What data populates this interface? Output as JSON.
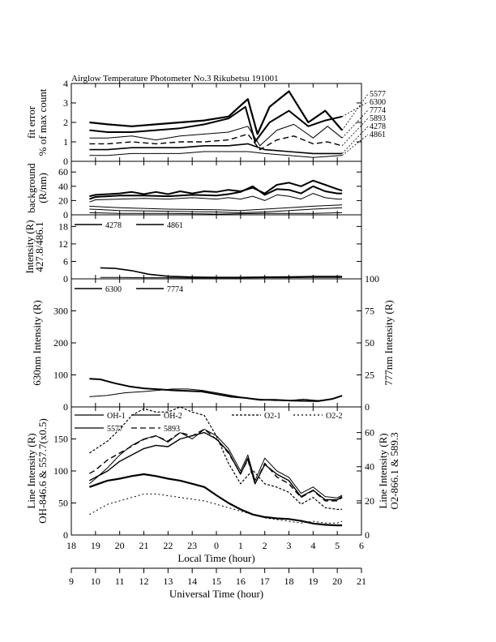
{
  "chart_data": [
    {
      "type": "line",
      "title": "Airglow Temperature Photometer No.3   Rikubetsu    191001",
      "ylabel": "fit error\n% of max count",
      "x_unit": "local hour",
      "xlim": [
        18,
        30
      ],
      "ylim": [
        0,
        4
      ],
      "yticks": [
        "0",
        "1",
        "2",
        "3",
        "4"
      ],
      "grid": false,
      "right_labels": [
        "5577",
        "6300",
        "7774",
        "5893",
        "4278",
        "4861"
      ],
      "series": [
        {
          "name": "5577",
          "x": [
            18.75,
            19.5,
            20.5,
            21.5,
            22.5,
            23.5,
            24.5,
            25.3,
            25.7,
            26.2,
            27,
            27.8,
            28.5,
            29.2
          ],
          "values": [
            2.0,
            1.9,
            1.8,
            1.9,
            2.0,
            2.1,
            2.3,
            3.2,
            1.4,
            2.8,
            3.6,
            2.0,
            2.6,
            1.6
          ]
        },
        {
          "name": "6300",
          "x": [
            18.75,
            19.5,
            20.5,
            21.5,
            22.5,
            23.5,
            24.5,
            25.2,
            25.6,
            26.2,
            27,
            27.8,
            28.5,
            29.2
          ],
          "values": [
            1.6,
            1.5,
            1.5,
            1.6,
            1.7,
            1.9,
            2.2,
            2.8,
            1.0,
            2.0,
            2.6,
            1.8,
            2.1,
            2.3
          ]
        },
        {
          "name": "7774",
          "x": [
            18.75,
            19.5,
            20.5,
            21.5,
            22.5,
            23.5,
            24.5,
            25.3,
            25.8,
            26.5,
            27.2,
            28,
            28.6,
            29.2
          ],
          "values": [
            1.2,
            1.2,
            1.3,
            1.1,
            1.3,
            1.4,
            1.5,
            1.8,
            0.8,
            1.6,
            1.9,
            1.2,
            1.8,
            1.2
          ]
        },
        {
          "name": "5893",
          "x": [
            18.75,
            19.5,
            20.5,
            21.5,
            22.5,
            23.5,
            24.5,
            25.3,
            25.8,
            26.5,
            27.2,
            28,
            28.6,
            29.2
          ],
          "values": [
            0.9,
            0.9,
            1.0,
            0.9,
            1.0,
            1.0,
            1.1,
            1.4,
            0.6,
            1.1,
            1.3,
            0.9,
            1.0,
            0.8
          ]
        },
        {
          "name": "4278",
          "x": [
            18.75,
            19.5,
            20.5,
            21.5,
            22.5,
            23.5,
            24.5,
            25.3,
            26,
            27,
            28,
            29.2
          ],
          "values": [
            0.6,
            0.6,
            0.7,
            0.7,
            0.7,
            0.8,
            0.8,
            0.9,
            0.6,
            0.5,
            0.4,
            0.4
          ]
        },
        {
          "name": "4861",
          "x": [
            18.75,
            19.5,
            20.5,
            21.5,
            22.5,
            23.5,
            24.5,
            25.3,
            26,
            27,
            28,
            29.2
          ],
          "values": [
            0.3,
            0.3,
            0.4,
            0.4,
            0.4,
            0.5,
            0.5,
            0.5,
            0.4,
            0.3,
            0.2,
            0.3
          ]
        }
      ]
    },
    {
      "type": "line",
      "ylabel": "background\n(R/nm)",
      "xlim": [
        18,
        30
      ],
      "ylim": [
        0,
        75
      ],
      "yticks": [
        "0",
        "20",
        "40",
        "60"
      ],
      "series": [
        {
          "x": [
            18.75,
            19,
            20,
            20.5,
            21,
            21.5,
            22,
            22.5,
            23,
            23.5,
            24,
            24.5,
            25,
            25.5,
            26,
            26.5,
            27,
            27.5,
            28,
            28.5,
            29,
            29.2
          ],
          "values": [
            26,
            28,
            30,
            32,
            29,
            32,
            29,
            33,
            30,
            33,
            32,
            35,
            33,
            38,
            30,
            42,
            45,
            40,
            48,
            42,
            36,
            34
          ]
        },
        {
          "x": [
            18.75,
            19,
            20,
            21,
            22,
            23,
            24,
            24.5,
            25,
            25.5,
            26,
            26.5,
            27,
            27.5,
            28,
            28.5,
            29,
            29.2
          ],
          "values": [
            22,
            25,
            27,
            27,
            26,
            28,
            27,
            29,
            32,
            40,
            28,
            36,
            35,
            30,
            40,
            33,
            30,
            30
          ]
        },
        {
          "x": [
            18.75,
            19,
            20,
            21,
            22,
            23,
            24,
            24.5,
            25,
            25.5,
            26,
            26.5,
            27,
            27.5,
            28,
            28.5,
            29,
            29.2
          ],
          "values": [
            18,
            21,
            22,
            23,
            22,
            24,
            22,
            24,
            22,
            26,
            20,
            28,
            26,
            22,
            30,
            24,
            22,
            22
          ]
        },
        {
          "x": [
            18.75,
            20,
            22,
            24,
            25,
            26,
            27,
            28,
            29.2
          ],
          "values": [
            12,
            10,
            8,
            7,
            6,
            8,
            10,
            12,
            14
          ]
        },
        {
          "x": [
            18.75,
            20,
            22,
            24,
            25,
            26,
            27,
            28,
            29.2
          ],
          "values": [
            8,
            6,
            5,
            4,
            3,
            4,
            6,
            8,
            10
          ]
        },
        {
          "x": [
            18.75,
            20,
            22,
            24,
            26,
            28,
            29.2
          ],
          "values": [
            3,
            2,
            2,
            1,
            2,
            2,
            3
          ]
        }
      ]
    },
    {
      "type": "line",
      "ylabel": "Intensity (R)\n427.8/486.1",
      "xlim": [
        18,
        30
      ],
      "ylim": [
        0,
        22
      ],
      "yticks": [
        "0",
        "6",
        "12",
        "18"
      ],
      "legend": [
        "4278",
        "4861"
      ],
      "series": [
        {
          "name": "4278",
          "x": [
            19.2,
            19.8,
            20.5,
            21.2,
            22,
            23,
            24,
            25,
            26,
            27,
            28,
            29.2
          ],
          "values": [
            3.8,
            3.6,
            2.8,
            1.6,
            0.9,
            0.6,
            0.5,
            0.5,
            0.6,
            0.7,
            0.8,
            0.8
          ]
        },
        {
          "name": "4861",
          "x": [
            19.2,
            20,
            21,
            22,
            23,
            24,
            25,
            26,
            27,
            28,
            29.2
          ],
          "values": [
            0.5,
            0.5,
            0.4,
            0.4,
            0.3,
            0.3,
            0.3,
            0.4,
            0.4,
            0.5,
            0.5
          ]
        }
      ]
    },
    {
      "type": "line",
      "ylabel": "630nm Intensity (R)",
      "ylabel_right": "777nm Intensity (R)",
      "xlim": [
        18,
        30
      ],
      "ylim": [
        0,
        400
      ],
      "ylim_right": [
        0,
        100
      ],
      "yticks": [
        "0",
        "100",
        "200",
        "300"
      ],
      "yticks_right": [
        "0",
        "25",
        "50",
        "75",
        "100"
      ],
      "legend": [
        "6300",
        "7774"
      ],
      "series": [
        {
          "name": "6300",
          "x": [
            18.75,
            19.2,
            19.8,
            20.4,
            21,
            21.6,
            22.2,
            22.8,
            23.4,
            24,
            24.6,
            25.2,
            25.8,
            26.4,
            27,
            27.6,
            28.2,
            28.8,
            29.2
          ],
          "values": [
            88,
            86,
            74,
            64,
            58,
            55,
            52,
            50,
            48,
            40,
            32,
            28,
            22,
            22,
            20,
            19,
            18,
            25,
            35
          ]
        },
        {
          "name": "7774",
          "x": [
            18.75,
            19.5,
            20.2,
            21,
            21.6,
            22.2,
            22.8,
            23.4,
            24,
            24.6,
            25.2,
            25.8,
            26.4,
            27,
            27.6,
            28.2,
            28.8,
            29.2
          ],
          "values": [
            8,
            9,
            11,
            12,
            13,
            14,
            14,
            13,
            11,
            9,
            7,
            6,
            5,
            5,
            6,
            5,
            6,
            9
          ]
        }
      ]
    },
    {
      "type": "line",
      "ylabel": "Line Intensity (R)\nOH-846.6 & 557.7(x0.5)",
      "ylabel_right": "Line Intensity (R)\nO2-866.1 & 589.3",
      "xlabel": "Local Time (hour)",
      "xlim": [
        18,
        30
      ],
      "ylim": [
        0,
        200
      ],
      "ylim_right": [
        0,
        75
      ],
      "yticks": [
        "0",
        "50",
        "100",
        "150"
      ],
      "yticks_right": [
        "0",
        "20",
        "40",
        "60"
      ],
      "xticks": [
        "18",
        "19",
        "20",
        "21",
        "22",
        "23",
        "0",
        "1",
        "2",
        "3",
        "4",
        "5",
        "6"
      ],
      "legend": [
        "OH-1",
        "OH-2",
        "O2-1",
        "O2-2",
        "5577",
        "5893"
      ],
      "series": [
        {
          "name": "OH-1",
          "x": [
            18.75,
            19,
            19.5,
            20,
            20.5,
            21,
            21.5,
            22,
            22.5,
            23,
            23.5,
            24,
            24.5,
            25,
            25.3,
            25.6,
            26,
            26.5,
            27,
            27.5,
            28,
            28.5,
            29,
            29.2
          ],
          "values": [
            85,
            90,
            100,
            115,
            125,
            135,
            140,
            138,
            150,
            155,
            160,
            150,
            130,
            95,
            120,
            80,
            110,
            95,
            85,
            60,
            70,
            55,
            55,
            60
          ]
        },
        {
          "name": "OH-2",
          "x": [
            18.75,
            19,
            19.5,
            20,
            20.5,
            21,
            21.5,
            22,
            22.5,
            23,
            23.5,
            24,
            24.5,
            25,
            25.3,
            25.6,
            26,
            26.5,
            27,
            27.5,
            28,
            28.5,
            29,
            29.2
          ],
          "values": [
            80,
            88,
            105,
            125,
            140,
            150,
            155,
            145,
            160,
            150,
            165,
            155,
            135,
            100,
            125,
            85,
            120,
            100,
            90,
            65,
            75,
            60,
            58,
            62
          ]
        },
        {
          "name": "O2-1",
          "x": [
            18.75,
            19.5,
            20,
            20.5,
            21,
            21.5,
            22,
            22.5,
            23,
            23.5,
            24,
            24.5,
            25,
            25.5,
            26,
            26.5,
            27,
            27.5,
            28,
            28.5,
            29,
            29.2
          ],
          "values": [
            48,
            55,
            62,
            70,
            74,
            72,
            72,
            75,
            72,
            70,
            58,
            42,
            30,
            38,
            30,
            28,
            25,
            18,
            22,
            16,
            15,
            15
          ]
        },
        {
          "name": "O2-2",
          "x": [
            18.75,
            19.5,
            20,
            20.5,
            21,
            21.5,
            22,
            22.5,
            23,
            23.5,
            24,
            24.5,
            25,
            25.5,
            26,
            26.5,
            27,
            27.5,
            28,
            28.5,
            29,
            29.2
          ],
          "values": [
            12,
            18,
            20,
            22,
            24,
            24,
            23,
            22,
            21,
            20,
            18,
            16,
            14,
            12,
            10,
            9,
            8,
            7,
            8,
            7,
            7,
            8
          ]
        },
        {
          "name": "5577",
          "x": [
            18.75,
            19.5,
            20,
            20.5,
            21,
            21.5,
            22,
            22.5,
            23,
            23.5,
            24,
            24.5,
            25,
            25.5,
            26,
            26.5,
            27,
            27.5,
            28,
            28.5,
            29,
            29.2
          ],
          "values": [
            75,
            85,
            88,
            92,
            95,
            92,
            88,
            85,
            80,
            75,
            62,
            50,
            40,
            32,
            28,
            26,
            25,
            22,
            18,
            16,
            15,
            15
          ]
        },
        {
          "name": "5893",
          "x": [
            18.75,
            19,
            19.5,
            20,
            20.5,
            21,
            21.5,
            22,
            22.5,
            23,
            23.5,
            24,
            24.5,
            25,
            25.3,
            25.6,
            26,
            26.5,
            27,
            27.5,
            28,
            28.5,
            29,
            29.2
          ],
          "values": [
            36,
            38,
            44,
            48,
            52,
            56,
            58,
            55,
            60,
            58,
            62,
            56,
            48,
            36,
            44,
            30,
            42,
            34,
            30,
            22,
            26,
            20,
            20,
            22
          ]
        }
      ]
    }
  ],
  "lower_axis": {
    "label": "Universal Time (hour)",
    "ticks": [
      "9",
      "10",
      "11",
      "12",
      "13",
      "14",
      "15",
      "16",
      "17",
      "18",
      "19",
      "20",
      "21"
    ]
  }
}
